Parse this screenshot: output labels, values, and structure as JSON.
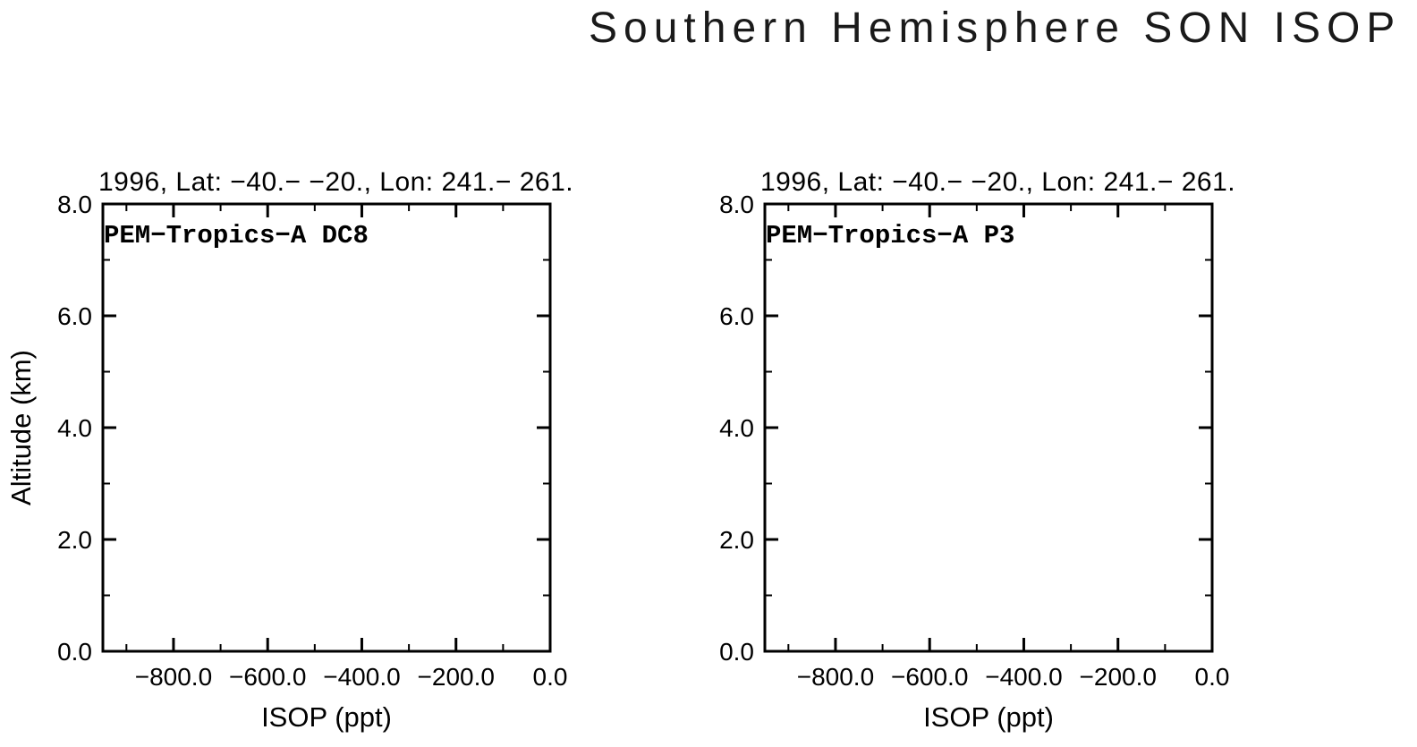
{
  "title": "Southern Hemisphere SON ISOP",
  "chart_data": [
    {
      "type": "scatter",
      "panel": "left",
      "header": "1996, Lat: −40.− −20., Lon: 241.− 261.",
      "label": "PEM−Tropics−A DC8",
      "xlabel": "ISOP (ppt)",
      "ylabel": "Altitude (km)",
      "xlim": [
        -950,
        0
      ],
      "ylim": [
        0,
        8
      ],
      "xticks": [
        -800,
        -600,
        -400,
        -200,
        0
      ],
      "xtick_labels": [
        "−800.0",
        "−600.0",
        "−400.0",
        "−200.0",
        "0.0"
      ],
      "yticks": [
        0,
        2,
        4,
        6,
        8
      ],
      "ytick_labels": [
        "0.0",
        "2.0",
        "4.0",
        "6.0",
        "8.0"
      ],
      "points": [],
      "grid": false,
      "legend": null
    },
    {
      "type": "scatter",
      "panel": "right",
      "header": "1996, Lat: −40.− −20., Lon: 241.− 261.",
      "label": "PEM−Tropics−A P3",
      "xlabel": "ISOP (ppt)",
      "ylabel": "",
      "xlim": [
        -950,
        0
      ],
      "ylim": [
        0,
        8
      ],
      "xticks": [
        -800,
        -600,
        -400,
        -200,
        0
      ],
      "xtick_labels": [
        "−800.0",
        "−600.0",
        "−400.0",
        "−200.0",
        "0.0"
      ],
      "yticks": [
        0,
        2,
        4,
        6,
        8
      ],
      "ytick_labels": [
        "0.0",
        "2.0",
        "4.0",
        "6.0",
        "8.0"
      ],
      "points": [],
      "grid": false,
      "legend": null
    }
  ]
}
